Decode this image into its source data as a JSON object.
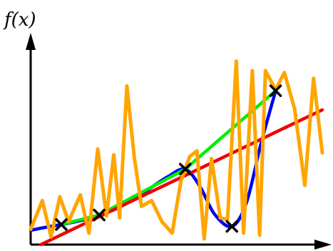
{
  "chart_data": {
    "type": "line",
    "title": "",
    "ylabel": "f(x)",
    "xlabel": "",
    "xlim": [
      0,
      10
    ],
    "ylim": [
      0,
      10
    ],
    "grid": false,
    "legend": "none",
    "sample_points": [
      {
        "x": 1.05,
        "y": 1.05
      },
      {
        "x": 2.35,
        "y": 1.55
      },
      {
        "x": 5.3,
        "y": 3.95
      },
      {
        "x": 6.9,
        "y": 0.95
      },
      {
        "x": 8.4,
        "y": 8.05
      }
    ],
    "series": [
      {
        "color": "#0000ee",
        "style": "smooth",
        "x": [
          0.0,
          0.5,
          1.05,
          1.7,
          2.35,
          2.9,
          3.5,
          4.1,
          4.7,
          5.3,
          5.8,
          6.3,
          6.9,
          7.4,
          7.9,
          8.4
        ],
        "y": [
          0.75,
          0.9,
          1.05,
          1.25,
          1.55,
          1.85,
          2.35,
          2.95,
          3.55,
          3.95,
          3.05,
          1.6,
          0.95,
          2.2,
          5.3,
          8.05
        ]
      },
      {
        "color": "#00ee00",
        "style": "linear",
        "x": [
          1.05,
          2.35,
          5.3,
          8.4
        ],
        "y": [
          1.05,
          1.55,
          3.95,
          8.05
        ]
      },
      {
        "color": "#ee0000",
        "style": "linear",
        "x": [
          0.35,
          10.0
        ],
        "y": [
          0.0,
          7.05
        ]
      },
      {
        "color": "#ffa500",
        "style": "linear",
        "x": [
          0.0,
          0.4,
          0.7,
          1.0,
          1.3,
          1.7,
          2.0,
          2.3,
          2.6,
          2.85,
          3.05,
          3.3,
          3.55,
          3.8,
          4.15,
          4.5,
          4.85,
          5.15,
          5.45,
          5.7,
          5.95,
          6.2,
          6.5,
          6.75,
          7.05,
          7.3,
          7.6,
          7.85,
          8.05,
          8.4,
          8.7,
          9.05,
          9.4,
          9.7,
          10.0
        ],
        "y": [
          0.8,
          2.3,
          0.4,
          2.5,
          1.2,
          2.6,
          0.6,
          5.0,
          1.5,
          4.7,
          1.4,
          8.3,
          4.6,
          2.0,
          2.3,
          1.2,
          0.6,
          3.3,
          4.6,
          4.9,
          0.3,
          4.5,
          1.4,
          1.3,
          9.6,
          0.6,
          9.1,
          0.5,
          9.1,
          8.1,
          9.0,
          7.1,
          3.1,
          8.7,
          4.8
        ]
      }
    ]
  }
}
